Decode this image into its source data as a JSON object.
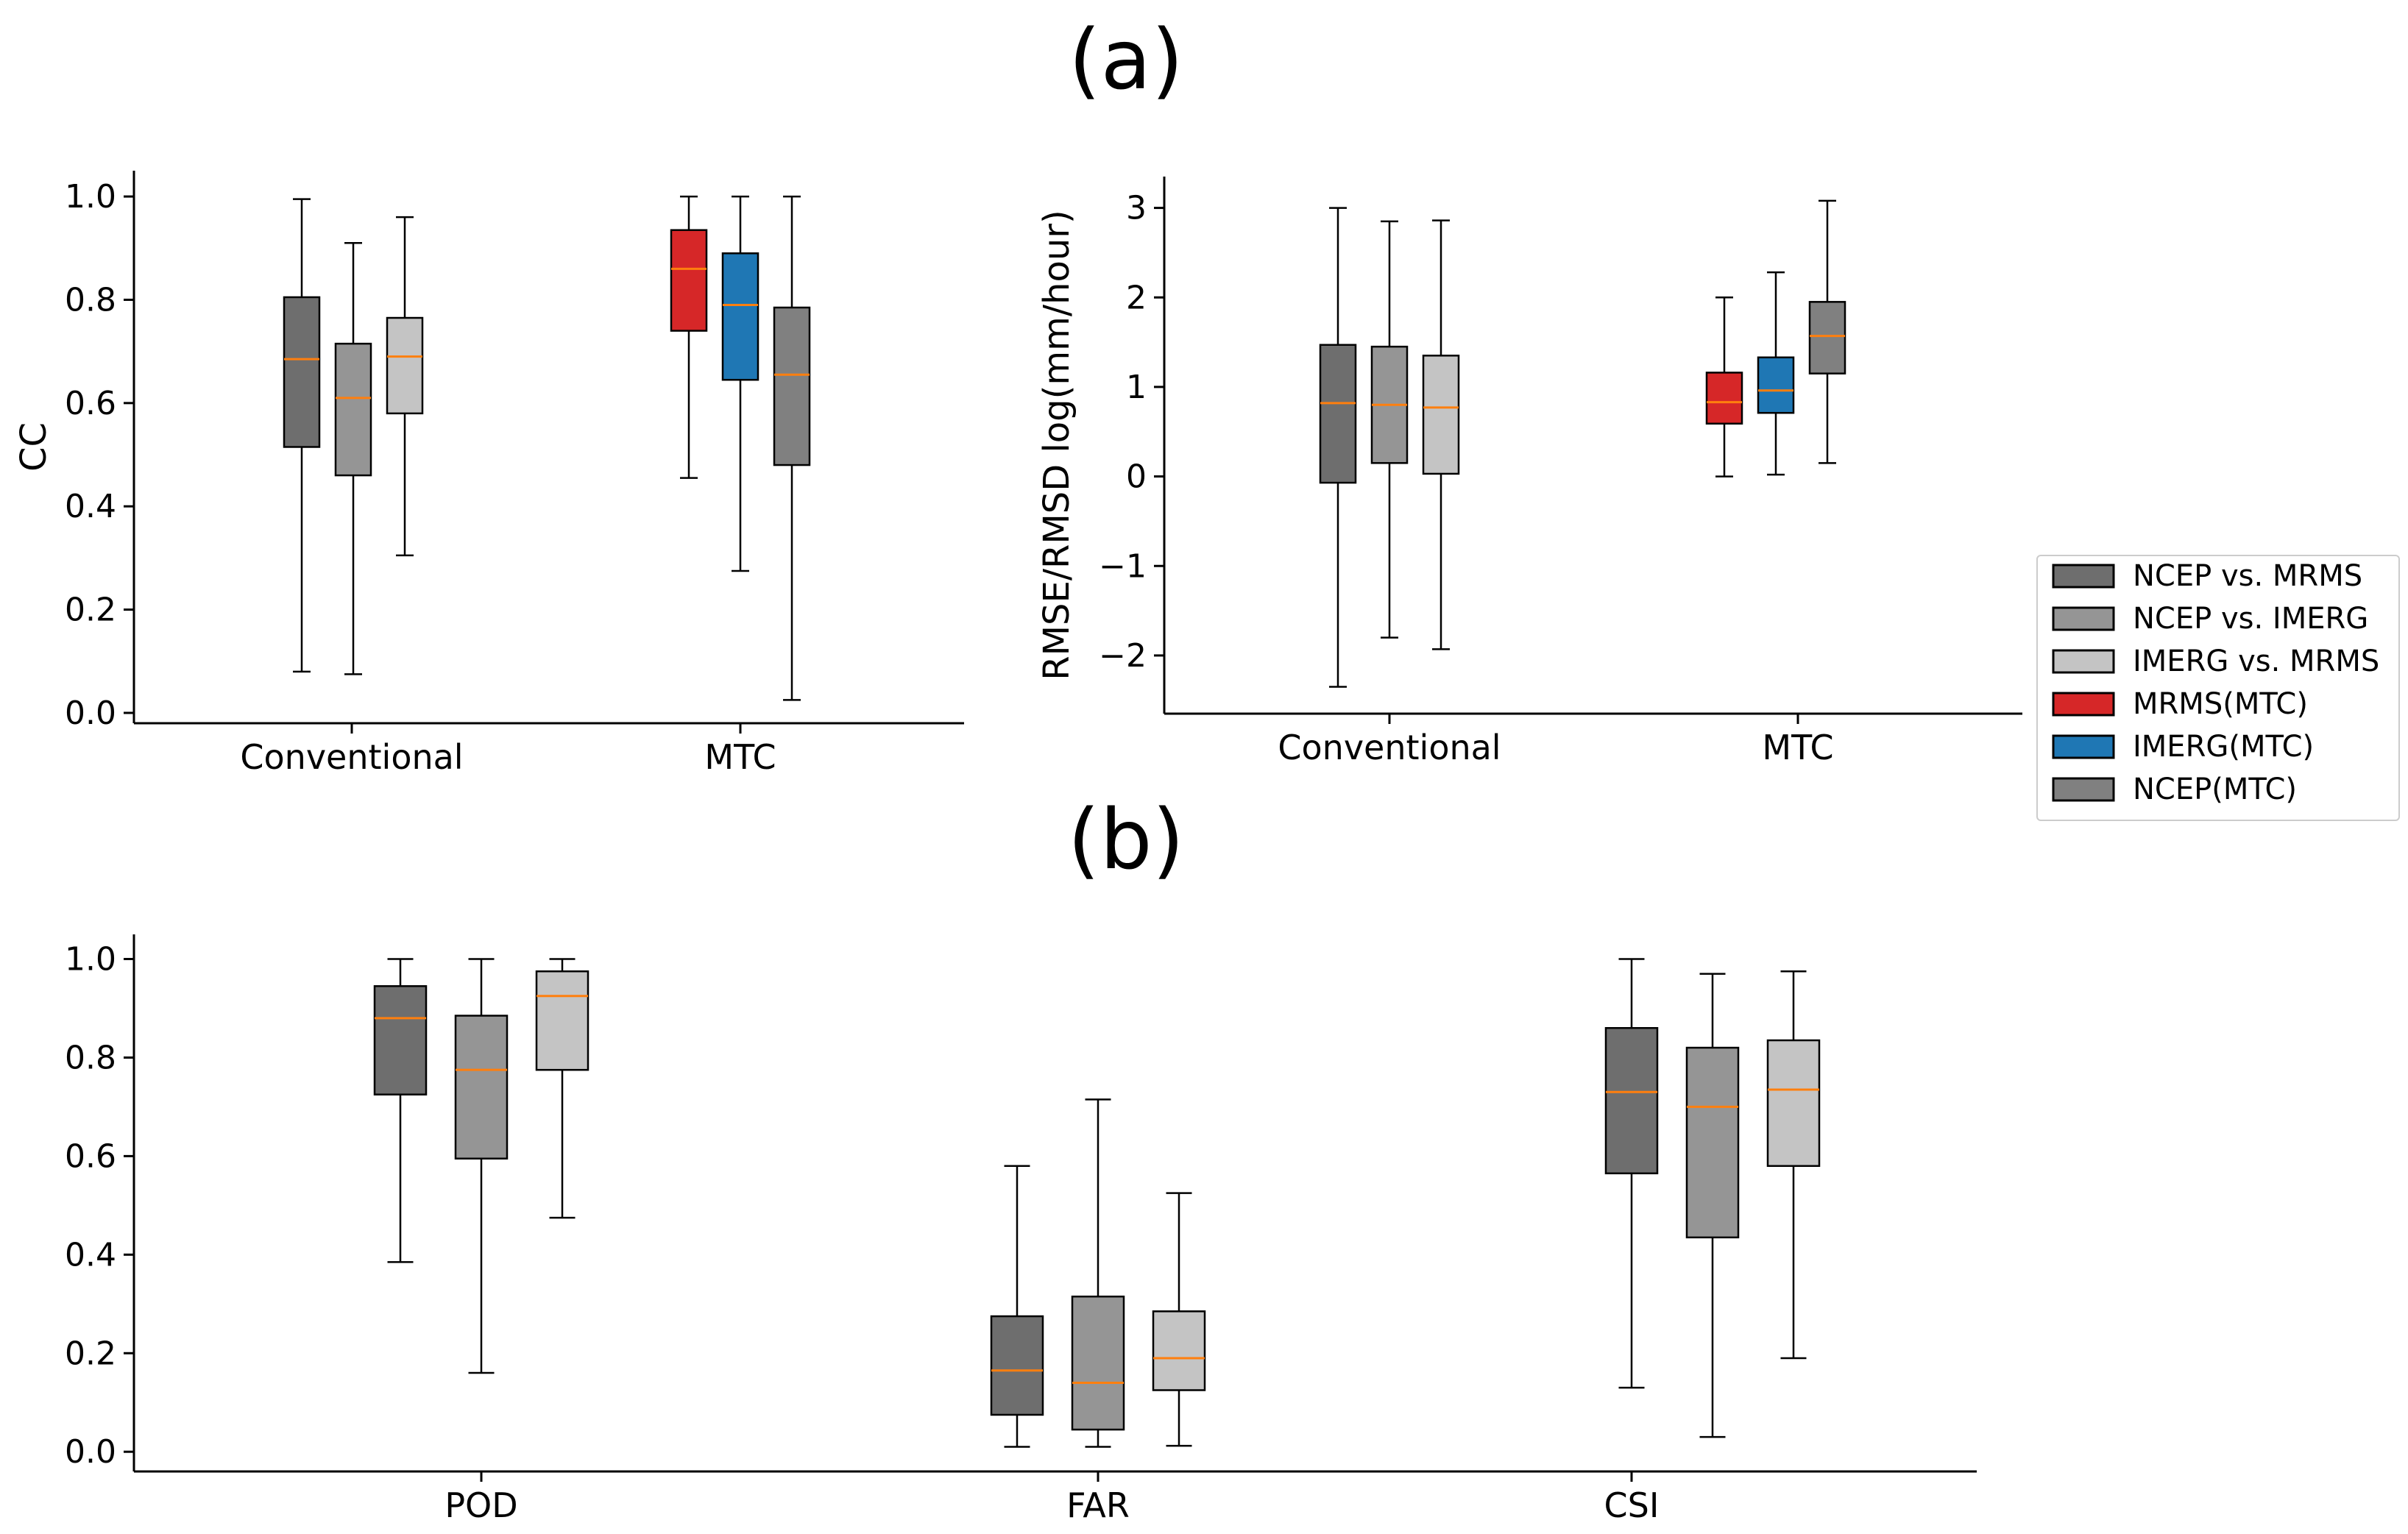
{
  "panel_labels": {
    "a": "(a)",
    "b": "(b)"
  },
  "legend": {
    "items": [
      {
        "label": "NCEP vs. MRMS",
        "color": "#6e6e6e"
      },
      {
        "label": "NCEP vs. IMERG",
        "color": "#959595"
      },
      {
        "label": "IMERG vs. MRMS",
        "color": "#c4c4c4"
      },
      {
        "label": "MRMS(MTC)",
        "color": "#d62728"
      },
      {
        "label": "IMERG(MTC)",
        "color": "#1f77b4"
      },
      {
        "label": "NCEP(MTC)",
        "color": "#808080"
      }
    ]
  },
  "chart_data": [
    {
      "id": "cc",
      "type": "box",
      "title": "",
      "xlabel": "",
      "ylabel": "CC",
      "ylim": [
        -0.02,
        1.05
      ],
      "yticks": [
        "0.0",
        "0.2",
        "0.4",
        "0.6",
        "0.8",
        "1.0"
      ],
      "ytick_values": [
        0,
        0.2,
        0.4,
        0.6,
        0.8,
        1.0
      ],
      "categories": [
        "Conventional",
        "MTC"
      ],
      "boxes": [
        {
          "group": "Conventional",
          "series": "NCEP vs. MRMS",
          "color": "#6e6e6e",
          "whislo": 0.08,
          "q1": 0.515,
          "med": 0.685,
          "q3": 0.805,
          "whishi": 0.995
        },
        {
          "group": "Conventional",
          "series": "NCEP vs. IMERG",
          "color": "#959595",
          "whislo": 0.075,
          "q1": 0.46,
          "med": 0.61,
          "q3": 0.715,
          "whishi": 0.91
        },
        {
          "group": "Conventional",
          "series": "IMERG vs. MRMS",
          "color": "#c4c4c4",
          "whislo": 0.305,
          "q1": 0.58,
          "med": 0.69,
          "q3": 0.765,
          "whishi": 0.96
        },
        {
          "group": "MTC",
          "series": "MRMS(MTC)",
          "color": "#d62728",
          "whislo": 0.455,
          "q1": 0.74,
          "med": 0.86,
          "q3": 0.935,
          "whishi": 1.0
        },
        {
          "group": "MTC",
          "series": "IMERG(MTC)",
          "color": "#1f77b4",
          "whislo": 0.275,
          "q1": 0.645,
          "med": 0.79,
          "q3": 0.89,
          "whishi": 1.0
        },
        {
          "group": "MTC",
          "series": "NCEP(MTC)",
          "color": "#808080",
          "whislo": 0.025,
          "q1": 0.48,
          "med": 0.655,
          "q3": 0.785,
          "whishi": 1.0
        }
      ]
    },
    {
      "id": "rmse",
      "type": "box",
      "title": "",
      "xlabel": "",
      "ylabel": "RMSE/RMSD log(mm/hour)",
      "ylim": [
        -2.65,
        3.35
      ],
      "yticks": [
        "−2",
        "−1",
        "0",
        "1",
        "2",
        "3"
      ],
      "ytick_values": [
        -2,
        -1,
        0,
        1,
        2,
        3
      ],
      "categories": [
        "Conventional",
        "MTC"
      ],
      "boxes": [
        {
          "group": "Conventional",
          "series": "NCEP vs. MRMS",
          "color": "#6e6e6e",
          "whislo": -2.35,
          "q1": -0.07,
          "med": 0.82,
          "q3": 1.47,
          "whishi": 3.0
        },
        {
          "group": "Conventional",
          "series": "NCEP vs. IMERG",
          "color": "#959595",
          "whislo": -1.8,
          "q1": 0.15,
          "med": 0.8,
          "q3": 1.45,
          "whishi": 2.85
        },
        {
          "group": "Conventional",
          "series": "IMERG vs. MRMS",
          "color": "#c4c4c4",
          "whislo": -1.93,
          "q1": 0.03,
          "med": 0.77,
          "q3": 1.35,
          "whishi": 2.86
        },
        {
          "group": "MTC",
          "series": "MRMS(MTC)",
          "color": "#d62728",
          "whislo": 0.0,
          "q1": 0.59,
          "med": 0.83,
          "q3": 1.16,
          "whishi": 2.0
        },
        {
          "group": "MTC",
          "series": "IMERG(MTC)",
          "color": "#1f77b4",
          "whislo": 0.02,
          "q1": 0.71,
          "med": 0.96,
          "q3": 1.33,
          "whishi": 2.28
        },
        {
          "group": "MTC",
          "series": "NCEP(MTC)",
          "color": "#808080",
          "whislo": 0.15,
          "q1": 1.15,
          "med": 1.57,
          "q3": 1.95,
          "whishi": 3.08
        }
      ]
    },
    {
      "id": "scores",
      "type": "box",
      "title": "",
      "xlabel": "",
      "ylabel": "",
      "ylim": [
        -0.04,
        1.05
      ],
      "yticks": [
        "0.0",
        "0.2",
        "0.4",
        "0.6",
        "0.8",
        "1.0"
      ],
      "ytick_values": [
        0,
        0.2,
        0.4,
        0.6,
        0.8,
        1.0
      ],
      "categories": [
        "POD",
        "FAR",
        "CSI"
      ],
      "boxes": [
        {
          "group": "POD",
          "series": "NCEP vs. MRMS",
          "color": "#6e6e6e",
          "whislo": 0.385,
          "q1": 0.725,
          "med": 0.88,
          "q3": 0.945,
          "whishi": 1.0
        },
        {
          "group": "POD",
          "series": "NCEP vs. IMERG",
          "color": "#959595",
          "whislo": 0.16,
          "q1": 0.595,
          "med": 0.775,
          "q3": 0.885,
          "whishi": 1.0
        },
        {
          "group": "POD",
          "series": "IMERG vs. MRMS",
          "color": "#c4c4c4",
          "whislo": 0.475,
          "q1": 0.775,
          "med": 0.925,
          "q3": 0.975,
          "whishi": 1.0
        },
        {
          "group": "FAR",
          "series": "NCEP vs. MRMS",
          "color": "#6e6e6e",
          "whislo": 0.01,
          "q1": 0.075,
          "med": 0.165,
          "q3": 0.275,
          "whishi": 0.58
        },
        {
          "group": "FAR",
          "series": "NCEP vs. IMERG",
          "color": "#959595",
          "whislo": 0.01,
          "q1": 0.045,
          "med": 0.14,
          "q3": 0.315,
          "whishi": 0.715
        },
        {
          "group": "FAR",
          "series": "IMERG vs. MRMS",
          "color": "#c4c4c4",
          "whislo": 0.012,
          "q1": 0.125,
          "med": 0.19,
          "q3": 0.285,
          "whishi": 0.525
        },
        {
          "group": "CSI",
          "series": "NCEP vs. MRMS",
          "color": "#6e6e6e",
          "whislo": 0.13,
          "q1": 0.565,
          "med": 0.73,
          "q3": 0.86,
          "whishi": 1.0
        },
        {
          "group": "CSI",
          "series": "NCEP vs. IMERG",
          "color": "#959595",
          "whislo": 0.03,
          "q1": 0.435,
          "med": 0.7,
          "q3": 0.82,
          "whishi": 0.97
        },
        {
          "group": "CSI",
          "series": "IMERG vs. MRMS",
          "color": "#c4c4c4",
          "whislo": 0.19,
          "q1": 0.58,
          "med": 0.735,
          "q3": 0.835,
          "whishi": 0.975
        }
      ]
    }
  ]
}
